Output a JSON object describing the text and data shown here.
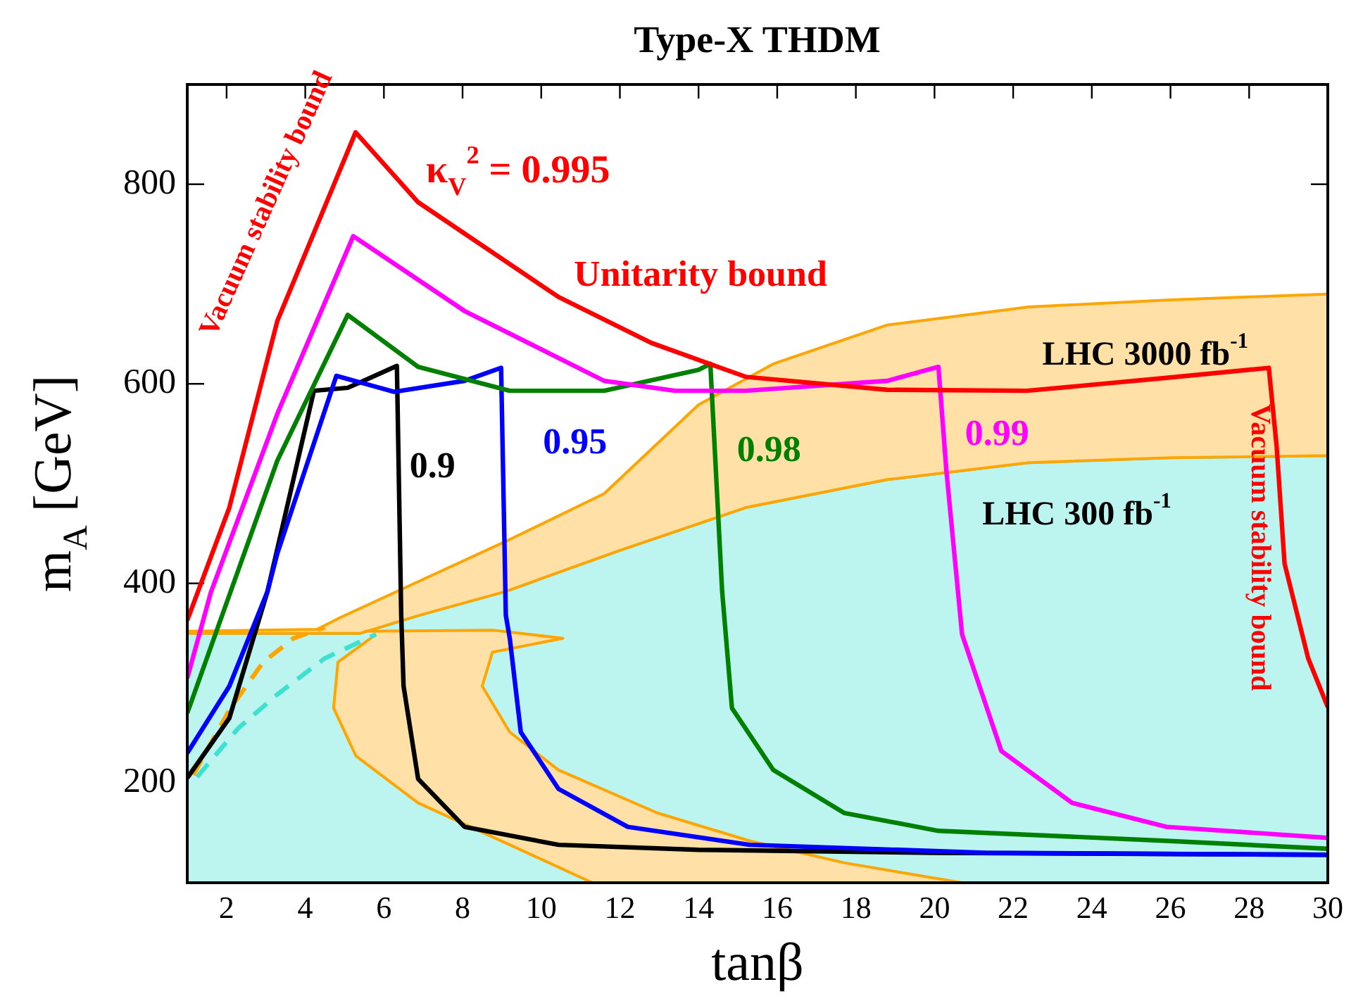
{
  "chart_data": {
    "type": "line",
    "title": "Type-X THDM",
    "xlabel": "tanβ",
    "ylabel": "m$_{A}$ [GeV]",
    "xlim": [
      1,
      30
    ],
    "ylim": [
      100,
      900
    ],
    "xticks": [
      2,
      4,
      6,
      8,
      10,
      12,
      14,
      16,
      18,
      20,
      22,
      24,
      26,
      28,
      30
    ],
    "yticks": [
      200,
      400,
      600,
      800
    ],
    "grid": false,
    "legend": false,
    "marker": "none",
    "line_style": "solid",
    "series": [
      {
        "type": "area",
        "color": "#40e0d0",
        "x": [
          1,
          1,
          5.4,
          6.9,
          9.1,
          12,
          15.2,
          18.8,
          22.4,
          26,
          30,
          30
        ],
        "values": [
          100,
          350,
          350,
          368,
          392,
          433,
          476,
          504,
          521,
          526,
          528,
          100
        ]
      },
      {
        "type": "area",
        "color": "#ffa500",
        "x": [
          1,
          4.3,
          4.9,
          9.2,
          11.6,
          14,
          15.9,
          18.8,
          22.4,
          25.9,
          30,
          30,
          26,
          22.4,
          18.8,
          15.2,
          12,
          9.1,
          6.9,
          5.4,
          1
        ],
        "values": [
          352,
          354,
          366,
          444,
          490,
          579,
          620,
          659,
          677,
          684,
          690,
          528,
          526,
          521,
          504,
          476,
          433,
          392,
          368,
          350,
          350
        ]
      },
      {
        "type": "area",
        "color": "#ffa500",
        "x": [
          5.5,
          8.8,
          10.55,
          8.76,
          8.5,
          9.2,
          10.44,
          12.95,
          15.3,
          17.7,
          20.7,
          11.3,
          9.2,
          6.87,
          5.29,
          4.72,
          4.83,
          5.8
        ],
        "values": [
          352,
          353,
          345,
          331,
          297,
          251,
          213,
          170,
          142,
          120,
          100,
          100,
          138,
          180,
          227,
          275,
          321,
          349
        ]
      },
      {
        "type": "line",
        "line_style": "dashed",
        "color": "#ffa500",
        "x": [
          1.15,
          2.1,
          2.93,
          3.7,
          4.5
        ],
        "values": [
          208,
          275,
          321,
          345,
          356
        ]
      },
      {
        "type": "line",
        "line_style": "dashed",
        "color": "#40e0d0",
        "x": [
          1.25,
          2.3,
          3.3,
          4.5,
          5.8
        ],
        "values": [
          206,
          255,
          289,
          325,
          349
        ]
      },
      {
        "type": "line",
        "color": "#000000",
        "x": [
          1,
          2.07,
          3.04,
          4.22,
          5.08,
          6.33,
          6.44,
          6.5,
          6.87,
          8.05,
          10.44,
          14,
          20,
          30
        ],
        "values": [
          205,
          265,
          392,
          593,
          596,
          618,
          368,
          297,
          204,
          156,
          138,
          133,
          130,
          128
        ]
      },
      {
        "type": "line",
        "color": "#0000ff",
        "x": [
          1,
          2.07,
          3.04,
          3.29,
          4.79,
          6.26,
          8.05,
          8.98,
          9.1,
          9.2,
          9.48,
          10.44,
          12.2,
          15.3,
          21.3,
          30
        ],
        "values": [
          230,
          297,
          392,
          430,
          608,
          592,
          603,
          616,
          368,
          345,
          251,
          194,
          156,
          138,
          130,
          128
        ]
      },
      {
        "type": "line",
        "color": "#008000",
        "x": [
          1,
          3.29,
          5.08,
          6.87,
          9.2,
          11.6,
          14,
          14.3,
          14.6,
          14.85,
          15.9,
          17.7,
          20.1,
          25.9,
          30
        ],
        "values": [
          270,
          523,
          669,
          617,
          593,
          593,
          614,
          620,
          392,
          275,
          213,
          170,
          152,
          142,
          134
        ]
      },
      {
        "type": "line",
        "color": "#ff00ff",
        "x": [
          1,
          1.6,
          3.29,
          5.22,
          8.05,
          11.6,
          13.4,
          15.2,
          18.8,
          20.1,
          20.3,
          20.7,
          21.7,
          23.5,
          25.9,
          30
        ],
        "values": [
          305,
          391,
          570,
          748,
          673,
          603,
          593,
          593,
          603,
          617,
          514,
          349,
          232,
          180,
          156,
          145
        ]
      },
      {
        "type": "line",
        "color": "#ff0000",
        "x": [
          1,
          2.07,
          3.29,
          5.28,
          6.87,
          10.44,
          12.8,
          15.2,
          18.8,
          22.35,
          25.9,
          28.5,
          28.7,
          28.9,
          29.5,
          30
        ],
        "values": [
          363,
          476,
          663,
          852,
          782,
          687,
          641,
          607,
          594,
          593,
          606,
          616,
          537,
          420,
          325,
          276
        ]
      }
    ],
    "annotations": [
      "κ$_{V}$$^{2}$ = 0.995",
      "Unitarity bound",
      "Vacuum stability bound",
      "0.9",
      "0.95",
      "0.98",
      "0.99",
      "LHC 3000 fb$^{-1}$",
      "LHC 300 fb$^{-1}$",
      "Vacuum stability bound"
    ]
  }
}
